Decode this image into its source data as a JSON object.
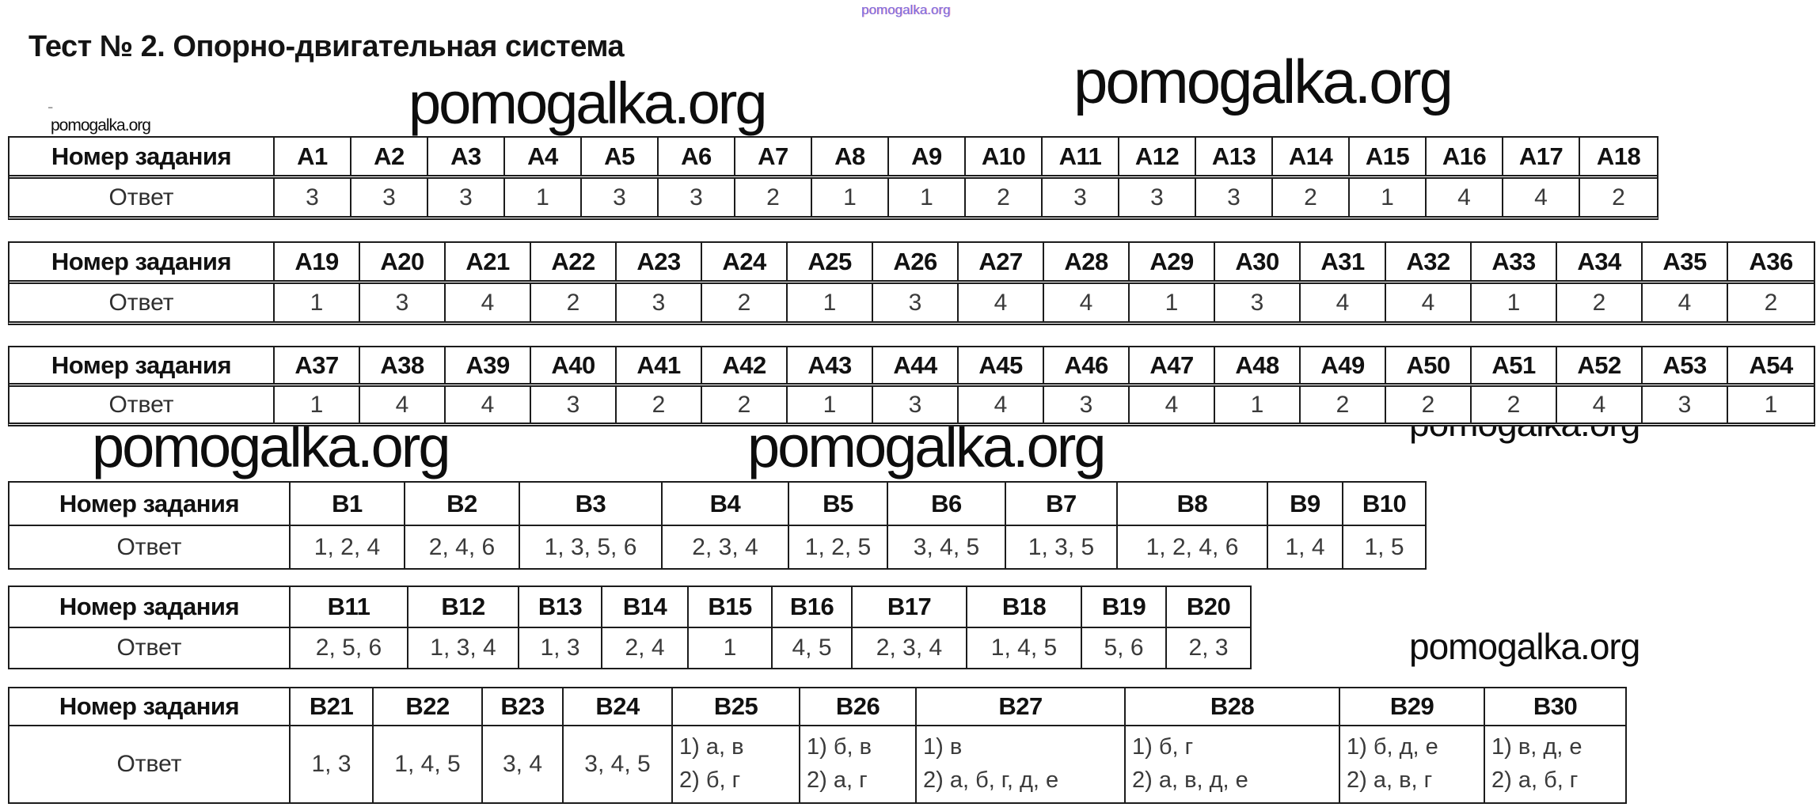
{
  "page": {
    "title": "Тест № 2. Опорно-двигательная система",
    "dash": "-"
  },
  "watermark": {
    "text": "pomogalka.org",
    "purple_color": "#7b6fe0",
    "black_color": "#0d0d0d"
  },
  "labels": {
    "task_number": "Номер задания",
    "answer": "Ответ"
  },
  "tables": [
    {
      "name": "А1-А18",
      "columns": [
        "А1",
        "А2",
        "А3",
        "А4",
        "А5",
        "А6",
        "А7",
        "А8",
        "А9",
        "А10",
        "А11",
        "А12",
        "А13",
        "А14",
        "А15",
        "А16",
        "А17",
        "А18"
      ],
      "answers": [
        "3",
        "3",
        "3",
        "1",
        "3",
        "3",
        "2",
        "1",
        "1",
        "2",
        "3",
        "3",
        "3",
        "2",
        "1",
        "4",
        "4",
        "2"
      ]
    },
    {
      "name": "А19-А36",
      "columns": [
        "А19",
        "А20",
        "А21",
        "А22",
        "А23",
        "А24",
        "А25",
        "А26",
        "А27",
        "А28",
        "А29",
        "А30",
        "А31",
        "А32",
        "А33",
        "А34",
        "А35",
        "А36"
      ],
      "answers": [
        "1",
        "3",
        "4",
        "2",
        "3",
        "2",
        "1",
        "3",
        "4",
        "4",
        "1",
        "3",
        "4",
        "4",
        "1",
        "2",
        "4",
        "2"
      ]
    },
    {
      "name": "А37-А54",
      "columns": [
        "А37",
        "А38",
        "А39",
        "А40",
        "А41",
        "А42",
        "А43",
        "А44",
        "А45",
        "А46",
        "А47",
        "А48",
        "А49",
        "А50",
        "А51",
        "А52",
        "А53",
        "А54"
      ],
      "answers": [
        "1",
        "4",
        "4",
        "3",
        "2",
        "2",
        "1",
        "3",
        "4",
        "3",
        "4",
        "1",
        "2",
        "2",
        "2",
        "4",
        "3",
        "1"
      ]
    },
    {
      "name": "В1-В10",
      "columns": [
        "В1",
        "В2",
        "В3",
        "В4",
        "В5",
        "В6",
        "В7",
        "В8",
        "В9",
        "В10"
      ],
      "answers": [
        "1, 2, 4",
        "2, 4, 6",
        "1, 3, 5, 6",
        "2, 3, 4",
        "1, 2, 5",
        "3, 4, 5",
        "1, 3, 5",
        "1, 2, 4, 6",
        "1, 4",
        "1, 5"
      ]
    },
    {
      "name": "В11-В20",
      "columns": [
        "В11",
        "В12",
        "В13",
        "В14",
        "В15",
        "В16",
        "В17",
        "В18",
        "В19",
        "В20"
      ],
      "answers": [
        "2, 5, 6",
        "1, 3, 4",
        "1, 3",
        "2, 4",
        "1",
        "4, 5",
        "2, 3, 4",
        "1, 4, 5",
        "5, 6",
        "2, 3"
      ]
    },
    {
      "name": "В21-В30",
      "columns": [
        "В21",
        "В22",
        "В23",
        "В24",
        "В25",
        "В26",
        "В27",
        "В28",
        "В29",
        "В30"
      ],
      "answers": [
        "1, 3",
        "1, 4, 5",
        "3, 4",
        "3, 4, 5",
        [
          "1) а, в",
          "2) б, г"
        ],
        [
          "1) б, в",
          "2) а, г"
        ],
        [
          "1) в",
          "2) а, б, г, д, е"
        ],
        [
          "1) б, г",
          "2) а, в, д, е"
        ],
        [
          "1) б, д, е",
          "2) а, в, г"
        ],
        [
          "1) в, д, е",
          "2) а, б, г"
        ]
      ]
    }
  ]
}
